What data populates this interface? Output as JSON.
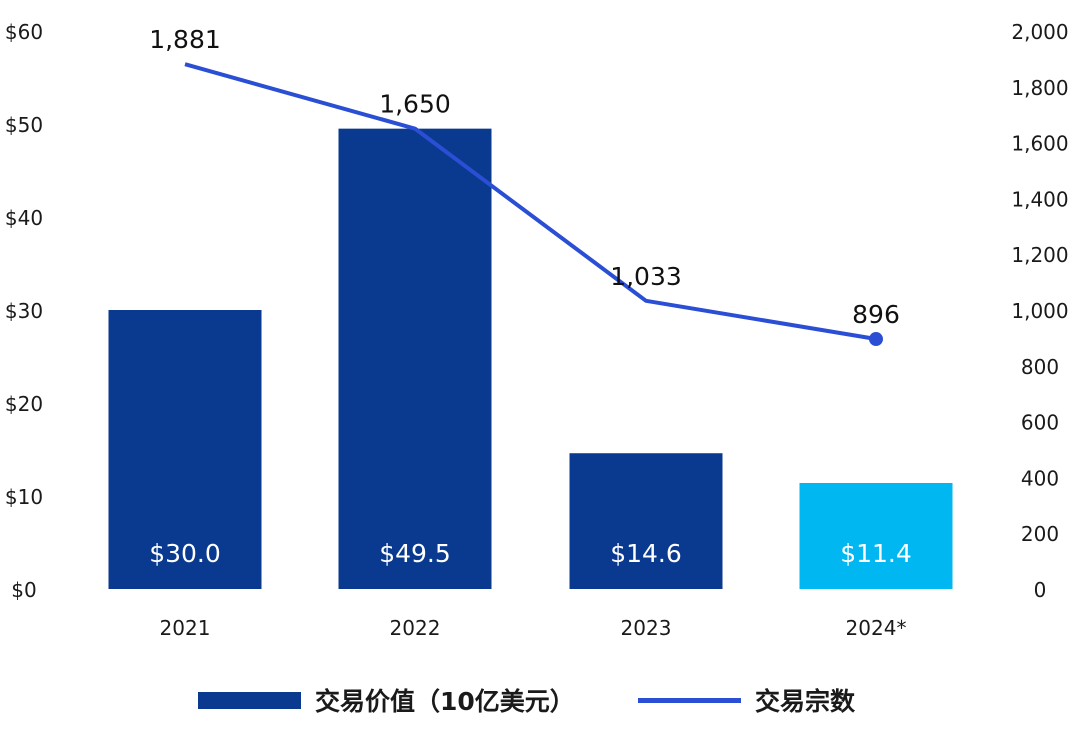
{
  "chart_data": {
    "type": "bar+line",
    "categories": [
      "2021",
      "2022",
      "2023",
      "2024*"
    ],
    "series": [
      {
        "name": "交易价值（10亿美元）",
        "type": "bar",
        "axis": "left",
        "values": [
          30.0,
          49.5,
          14.6,
          11.4
        ],
        "labels": [
          "$30.0",
          "$49.5",
          "$14.6",
          "$11.4"
        ],
        "colors": [
          "#0a3a8f",
          "#0a3a8f",
          "#0a3a8f",
          "#00b7f1"
        ]
      },
      {
        "name": "交易宗数",
        "type": "line",
        "axis": "right",
        "values": [
          1881,
          1650,
          1033,
          896
        ],
        "labels": [
          "1,881",
          "1,650",
          "1,033",
          "896"
        ],
        "color": "#2a4fd4"
      }
    ],
    "left_axis": {
      "range": [
        0,
        60
      ],
      "ticks": [
        "$0",
        "$10",
        "$20",
        "$30",
        "$40",
        "$50",
        "$60"
      ]
    },
    "right_axis": {
      "range": [
        0,
        2000
      ],
      "ticks": [
        "0",
        "200",
        "400",
        "600",
        "800",
        "1,000",
        "1,200",
        "1,400",
        "1,600",
        "1,800",
        "2,000"
      ]
    },
    "grid": false,
    "legend_placement": "bottom"
  }
}
